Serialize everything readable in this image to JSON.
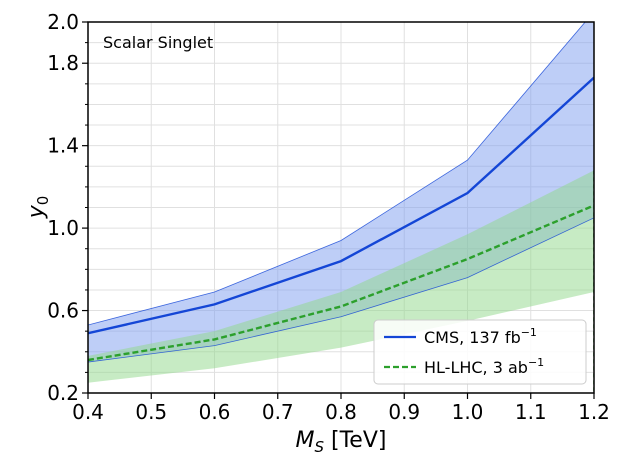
{
  "chart_data": {
    "type": "line",
    "title": "",
    "annotation": "Scalar Singlet",
    "xlabel": "M_S [TeV]",
    "xlabel_main": "M",
    "xlabel_sub": "S",
    "xlabel_unit": " [TeV]",
    "ylabel": "y_0",
    "ylabel_main": "y",
    "ylabel_sub": "0",
    "xlim": [
      0.4,
      1.2
    ],
    "ylim": [
      0.2,
      2.0
    ],
    "grid": true,
    "x_ticks": [
      0.4,
      0.5,
      0.6,
      0.7,
      0.8,
      0.9,
      1.0,
      1.1,
      1.2
    ],
    "x_tick_labels": [
      "0.4",
      "0.5",
      "0.6",
      "0.7",
      "0.8",
      "0.9",
      "1.0",
      "1.1",
      "1.2"
    ],
    "y_major_ticks": [
      0.2,
      0.6,
      1.0,
      1.4,
      1.8,
      2.0
    ],
    "y_tick_labels": [
      "0.2",
      "0.6",
      "1.0",
      "1.4",
      "1.8",
      "2.0"
    ],
    "y_minor_ticks": [
      0.3,
      0.4,
      0.5,
      0.7,
      0.8,
      0.9,
      1.1,
      1.2,
      1.3,
      1.5,
      1.6,
      1.7,
      1.9
    ],
    "legend_position": "lower-right",
    "series": [
      {
        "name": "CMS, 137 fb",
        "legend_main": "CMS, 137 fb",
        "legend_sup": "−1",
        "style": "solid",
        "color": "#1446d6",
        "band_color": "#7d9ef0",
        "x": [
          0.4,
          0.6,
          0.8,
          1.0,
          1.2
        ],
        "values": [
          0.49,
          0.63,
          0.84,
          1.17,
          1.73
        ],
        "band_upper": [
          0.53,
          0.69,
          0.94,
          1.33,
          2.05
        ],
        "band_lower": [
          0.35,
          0.43,
          0.57,
          0.76,
          1.05
        ]
      },
      {
        "name": "HL-LHC, 3 ab",
        "legend_main": "HL-LHC, 3 ab",
        "legend_sup": "−1",
        "style": "dashed",
        "color": "#2ca02c",
        "band_color": "#8fd88a",
        "x": [
          0.4,
          0.6,
          0.8,
          1.0,
          1.2
        ],
        "values": [
          0.36,
          0.46,
          0.62,
          0.85,
          1.11
        ],
        "band_upper": [
          0.38,
          0.5,
          0.69,
          0.97,
          1.28
        ],
        "band_lower": [
          0.25,
          0.32,
          0.42,
          0.55,
          0.69
        ]
      }
    ]
  }
}
